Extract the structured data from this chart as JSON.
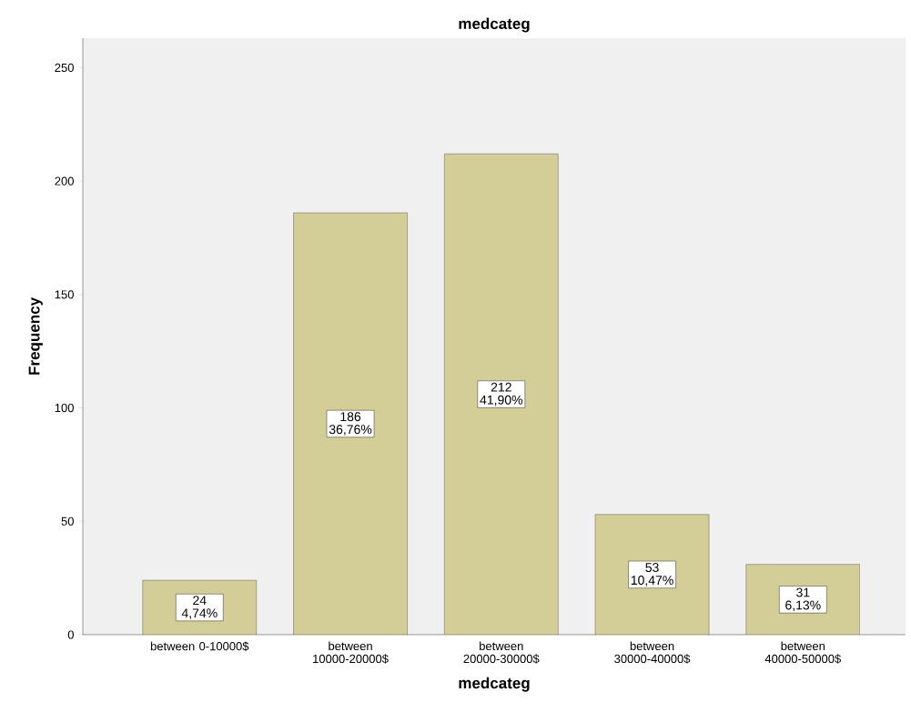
{
  "chart_data": {
    "type": "bar",
    "title": "medcateg",
    "xlabel": "medcateg",
    "ylabel": "Frequency",
    "categories": [
      "between 0-10000$",
      "between 10000-20000$",
      "between 20000-30000$",
      "between 30000-40000$",
      "between 40000-50000$"
    ],
    "values": [
      24,
      186,
      212,
      53,
      31
    ],
    "value_labels": [
      "24 4,74%",
      "186 36,76%",
      "212 41,90%",
      "53 10,47%",
      "31 6,13%"
    ],
    "color": "#d3ce97",
    "ylim": [
      0,
      263
    ],
    "yticks": [
      0,
      50,
      100,
      150,
      200,
      250
    ],
    "grid": false
  }
}
